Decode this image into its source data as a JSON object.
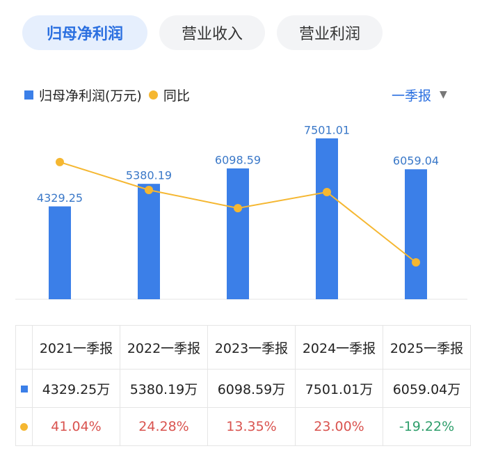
{
  "tabs": [
    "归母净利润",
    "营业收入",
    "营业利润"
  ],
  "dropdown": "一季报",
  "chart_data": {
    "type": "bar",
    "categories": [
      "2021一季报",
      "2022一季报",
      "2023一季报",
      "2024一季报",
      "2025一季报"
    ],
    "series": [
      {
        "name": "归母净利润(万元)",
        "type": "bar",
        "color": "#3b7fe8",
        "values": [
          4329.25,
          5380.19,
          6098.59,
          7501.01,
          6059.04
        ]
      },
      {
        "name": "同比",
        "type": "line",
        "axis": "y2",
        "color": "#f5b731",
        "values": [
          41.04,
          24.28,
          13.35,
          23.0,
          -19.22
        ]
      }
    ],
    "ylim": [
      0,
      8500
    ],
    "y2lim": [
      -41.4,
      68.2
    ]
  },
  "table": {
    "rows": [
      [
        "4329.25万",
        "5380.19万",
        "6098.59万",
        "7501.01万",
        "6059.04万"
      ],
      [
        "41.04%",
        "24.28%",
        "13.35%",
        "23.00%",
        "-19.22%"
      ]
    ]
  }
}
